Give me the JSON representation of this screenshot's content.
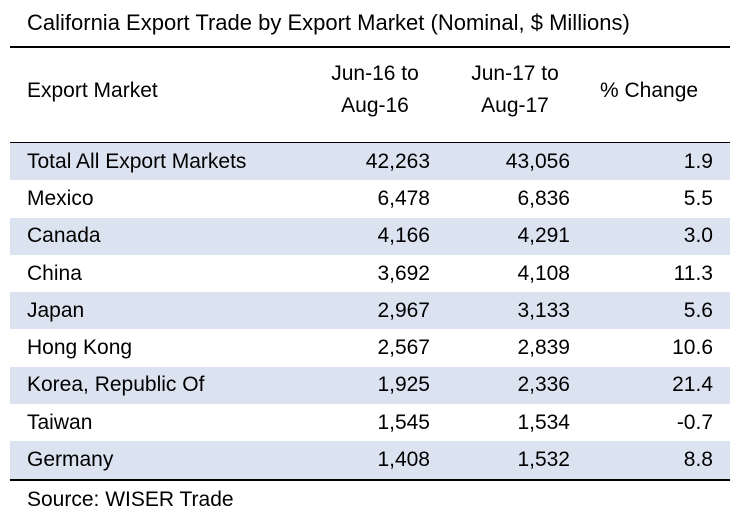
{
  "table": {
    "title": "California Export Trade by Export Market (Nominal, $ Millions)",
    "headers": {
      "market": "Export Market",
      "col1_line1": "Jun-16  to",
      "col1_line2": "Aug-16",
      "col2_line1": "Jun-17  to",
      "col2_line2": "Aug-17",
      "pct": "% Change"
    },
    "rows": [
      {
        "market": "Total All Export Markets",
        "v1": "42,263",
        "v2": "43,056",
        "pct": "1.9"
      },
      {
        "market": "Mexico",
        "v1": "6,478",
        "v2": "6,836",
        "pct": "5.5"
      },
      {
        "market": "Canada",
        "v1": "4,166",
        "v2": "4,291",
        "pct": "3.0"
      },
      {
        "market": "China",
        "v1": "3,692",
        "v2": "4,108",
        "pct": "11.3"
      },
      {
        "market": "Japan",
        "v1": "2,967",
        "v2": "3,133",
        "pct": "5.6"
      },
      {
        "market": "Hong Kong",
        "v1": "2,567",
        "v2": "2,839",
        "pct": "10.6"
      },
      {
        "market": "Korea, Republic Of",
        "v1": "1,925",
        "v2": "2,336",
        "pct": "21.4"
      },
      {
        "market": "Taiwan",
        "v1": "1,545",
        "v2": "1,534",
        "pct": "-0.7"
      },
      {
        "market": "Germany",
        "v1": "1,408",
        "v2": "1,532",
        "pct": "8.8"
      }
    ],
    "source": "Source: WISER Trade",
    "shade_color": "#dbe3f1"
  }
}
